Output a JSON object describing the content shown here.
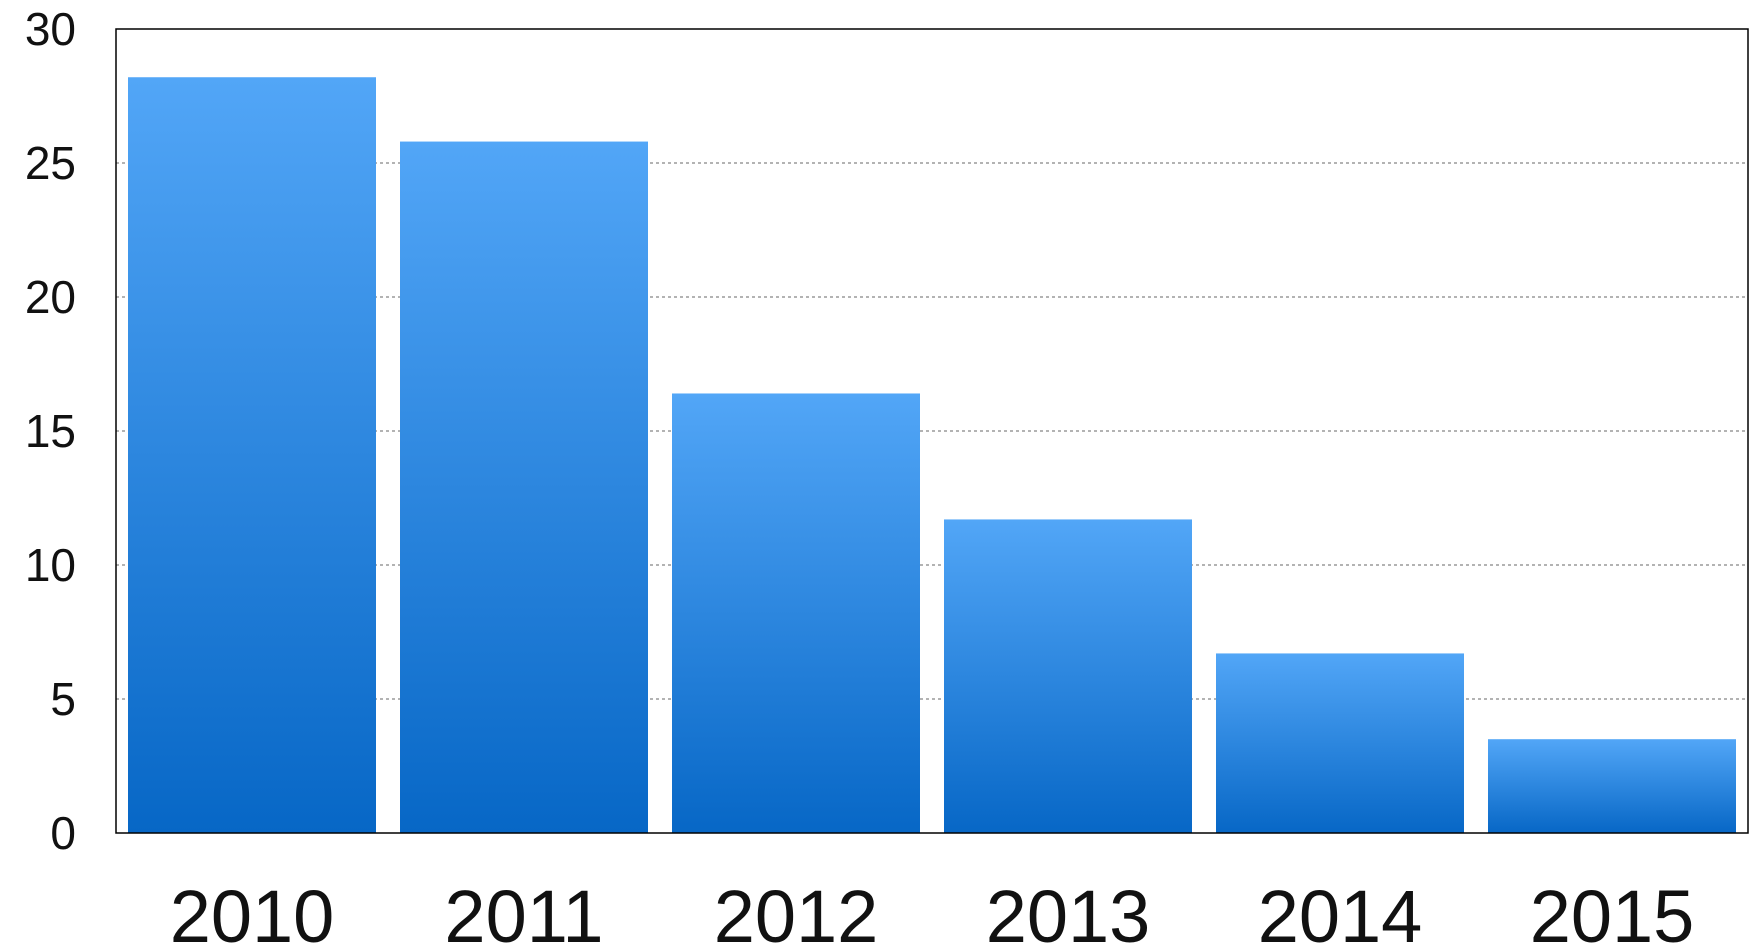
{
  "chart_data": {
    "type": "bar",
    "title": "",
    "xlabel": "",
    "ylabel": "",
    "categories": [
      "2010",
      "2011",
      "2012",
      "2013",
      "2014",
      "2015"
    ],
    "values": [
      28.2,
      25.8,
      16.4,
      11.7,
      6.7,
      3.5
    ],
    "ylim": [
      0,
      30
    ],
    "yticks": [
      0,
      5,
      10,
      15,
      20,
      25,
      30
    ],
    "ytick_labels": [
      "0",
      "5",
      "10",
      "15",
      "20",
      "25",
      "30"
    ],
    "grid": "horizontal dotted",
    "legend": "none",
    "colors": {
      "bar_top": "#52a6f7",
      "bar_bottom": "#0767c6",
      "grid": "#9a9a9a",
      "axis": "#000000"
    }
  }
}
